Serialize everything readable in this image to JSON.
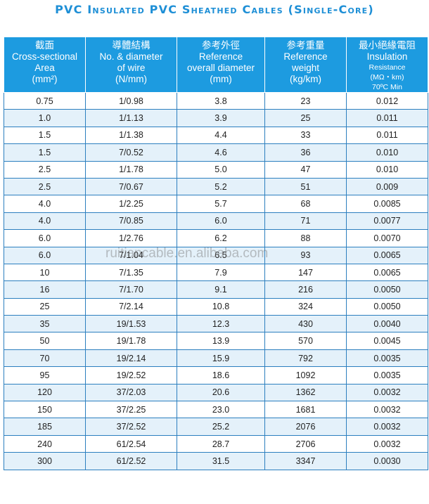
{
  "title": "PVC Insulated PVC Sheathed Cables (Single-Core)",
  "watermark": "ruitiancable.en.alibaba.com",
  "headers": [
    [
      "截面",
      "Cross-sectional",
      "Area",
      "(mm²)"
    ],
    [
      "導體結構",
      "No. & diameter",
      "of wire",
      "(N/mm)"
    ],
    [
      "参考外徑",
      "Reference",
      "overall diameter",
      "(mm)"
    ],
    [
      "参考重量",
      "Reference",
      "weight",
      "(kg/km)"
    ],
    [
      "最小絕緣電阻",
      "Insulation",
      "Resistance",
      "(MΩ・km)",
      "70ºC Min"
    ]
  ],
  "rows": [
    [
      "0.75",
      "1/0.98",
      "3.8",
      "23",
      "0.012"
    ],
    [
      "1.0",
      "1/1.13",
      "3.9",
      "25",
      "0.011"
    ],
    [
      "1.5",
      "1/1.38",
      "4.4",
      "33",
      "0.011"
    ],
    [
      "1.5",
      "7/0.52",
      "4.6",
      "36",
      "0.010"
    ],
    [
      "2.5",
      "1/1.78",
      "5.0",
      "47",
      "0.010"
    ],
    [
      "2.5",
      "7/0.67",
      "5.2",
      "51",
      "0.009"
    ],
    [
      "4.0",
      "1/2.25",
      "5.7",
      "68",
      "0.0085"
    ],
    [
      "4.0",
      "7/0.85",
      "6.0",
      "71",
      "0.0077"
    ],
    [
      "6.0",
      "1/2.76",
      "6.2",
      "88",
      "0.0070"
    ],
    [
      "6.0",
      "7/1.04",
      "6.5",
      "93",
      "0.0065"
    ],
    [
      "10",
      "7/1.35",
      "7.9",
      "147",
      "0.0065"
    ],
    [
      "16",
      "7/1.70",
      "9.1",
      "216",
      "0.0050"
    ],
    [
      "25",
      "7/2.14",
      "10.8",
      "324",
      "0.0050"
    ],
    [
      "35",
      "19/1.53",
      "12.3",
      "430",
      "0.0040"
    ],
    [
      "50",
      "19/1.78",
      "13.9",
      "570",
      "0.0045"
    ],
    [
      "70",
      "19/2.14",
      "15.9",
      "792",
      "0.0035"
    ],
    [
      "95",
      "19/2.52",
      "18.6",
      "1092",
      "0.0035"
    ],
    [
      "120",
      "37/2.03",
      "20.6",
      "1362",
      "0.0032"
    ],
    [
      "150",
      "37/2.25",
      "23.0",
      "1681",
      "0.0032"
    ],
    [
      "185",
      "37/2.52",
      "25.2",
      "2076",
      "0.0032"
    ],
    [
      "240",
      "61/2.54",
      "28.7",
      "2706",
      "0.0032"
    ],
    [
      "300",
      "61/2.52",
      "31.5",
      "3347",
      "0.0030"
    ]
  ]
}
